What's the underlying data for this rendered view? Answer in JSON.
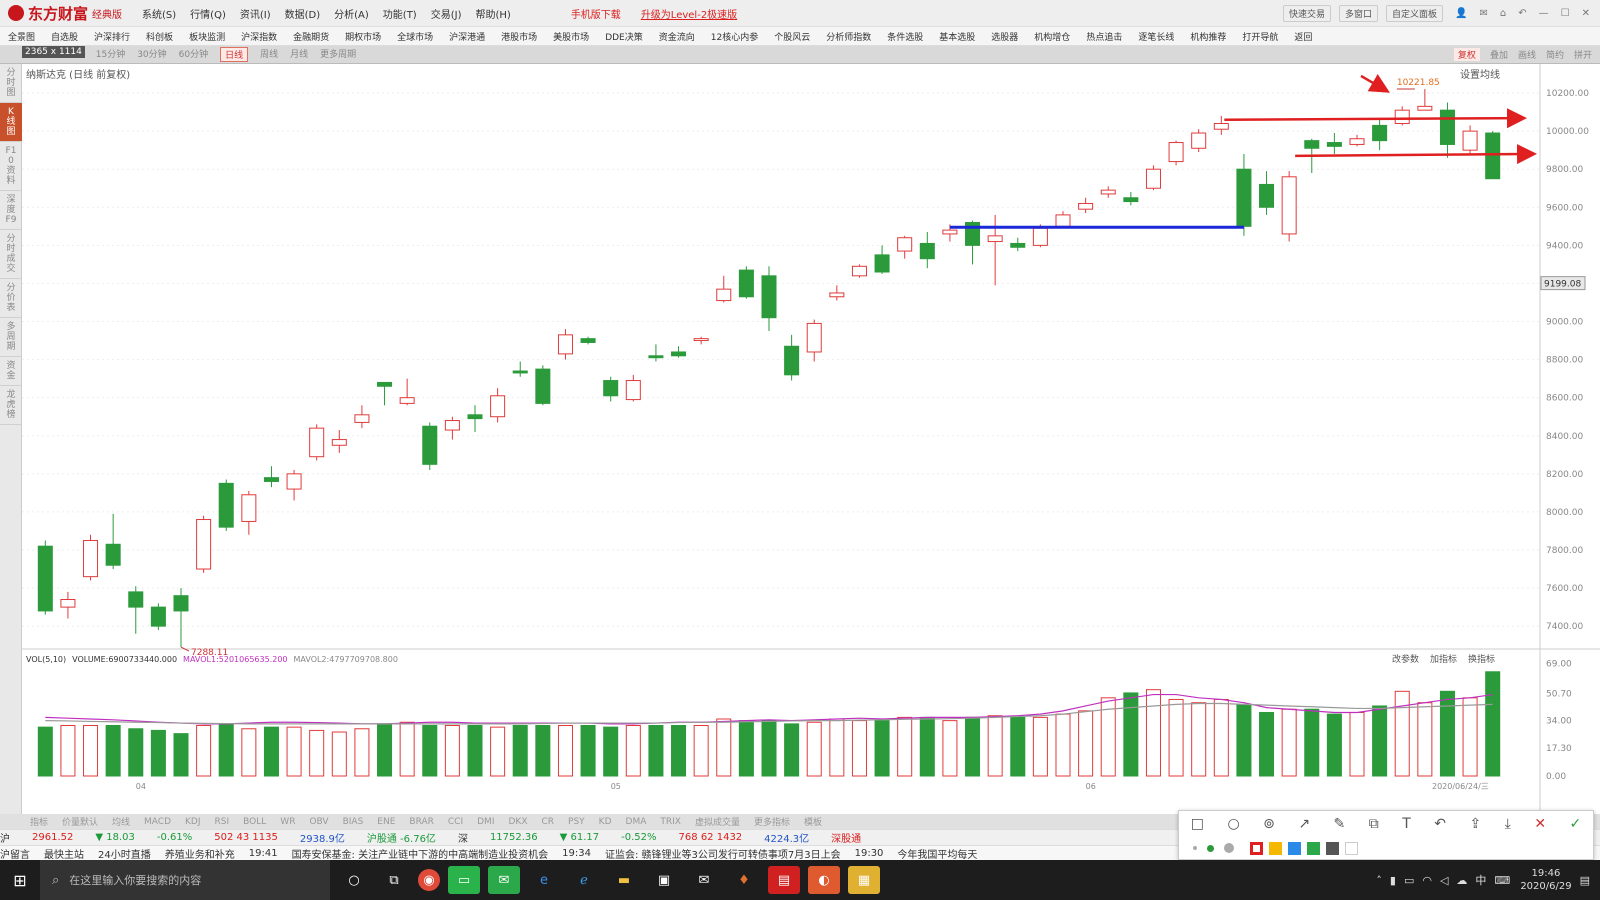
{
  "app": {
    "logo": "东方财富",
    "edition": "经典版"
  },
  "menu": [
    "系统(S)",
    "行情(Q)",
    "资讯(I)",
    "数据(D)",
    "分析(A)",
    "功能(T)",
    "交易(J)",
    "帮助(H)"
  ],
  "promo": {
    "download": "手机版下载",
    "upgrade": "升级为Level-2极速版"
  },
  "title_right": [
    "快速交易",
    "多窗口",
    "自定义面板"
  ],
  "nav": [
    "全景图",
    "自选股",
    "沪深排行",
    "科创板",
    "板块监测",
    "沪深指数",
    "金融期货",
    "期权市场",
    "全球市场",
    "沪深港通",
    "港股市场",
    "美股市场",
    "DDE决策",
    "资金流向",
    "12核心内参",
    "个股风云",
    "分析师指数",
    "条件选股",
    "基本选股",
    "选股器",
    "机构增仓",
    "热点追击",
    "逐笔长线",
    "机构推荐",
    "打开导航",
    "返回"
  ],
  "periods": [
    "分时",
    "5分钟",
    "15分钟",
    "30分钟",
    "60分钟",
    "日线",
    "周线",
    "月线",
    "更多周期"
  ],
  "period_active": "日线",
  "resolution": "2365 x 1114",
  "period_right": [
    "复权",
    "叠加",
    "画线",
    "简约",
    "拼开"
  ],
  "sidebar": [
    "分时图",
    "K线图",
    "F10资料",
    "深度F9",
    "分时成交",
    "分价表",
    "多周期",
    "资金",
    "龙虎榜"
  ],
  "sidebar_active": "K线图",
  "chart": {
    "title": "纳斯达克 (日线 前复权)",
    "ma_setting": "设置均线",
    "high_label": "10221.85",
    "low_label": "7288.11",
    "current_price": "9199.08"
  },
  "volume": {
    "legend": "VOL(5,10)",
    "volume": "VOLUME:6900733440.000",
    "mavol1": "MAVOL1:5201065635.200",
    "mavol2": "MAVOL2:4797709708.800",
    "tools": [
      "改参数",
      "加指标",
      "换指标"
    ],
    "x_labels": [
      "04",
      "05",
      "06"
    ],
    "date_label": "2020/06/24/三"
  },
  "indicator_tabs": [
    "指标",
    "价量默认",
    "均线",
    "MACD",
    "KDJ",
    "RSI",
    "BOLL",
    "WR",
    "OBV",
    "BIAS",
    "ENE",
    "BRAR",
    "CCI",
    "DMI",
    "DKX",
    "CR",
    "PSY",
    "KD",
    "DMA",
    "TRIX",
    "虚拟成交量",
    "更多指标",
    "模板"
  ],
  "ticker": [
    {
      "t": "沪",
      "c": ""
    },
    {
      "t": "2961.52",
      "c": "r"
    },
    {
      "t": "▼ 18.03",
      "c": "g"
    },
    {
      "t": "-0.61%",
      "c": "g"
    },
    {
      "t": "502 43 1135",
      "c": "r"
    },
    {
      "t": "2938.9亿",
      "c": "b"
    },
    {
      "t": "沪股通 -6.76亿",
      "c": "g"
    },
    {
      "t": "深",
      "c": ""
    },
    {
      "t": "11752.36",
      "c": "g"
    },
    {
      "t": "▼ 61.17",
      "c": "g"
    },
    {
      "t": "-0.52%",
      "c": "g"
    },
    {
      "t": "768 62 1432",
      "c": "r"
    },
    {
      "t": "4224.3亿",
      "c": "b"
    },
    {
      "t": "深股通",
      "c": "r"
    }
  ],
  "news": [
    "沪留言",
    "最快主站",
    "24小时直播",
    "养殖业务和补充",
    "19:41",
    "国寿安保基金: 关注产业链中下游的中高端制造业投资机会",
    "19:34",
    "证监会: 赣锋锂业等3公司发行可转债事项7月3日上会",
    "19:30",
    "今年我国平均每天"
  ],
  "taskbar": {
    "search_placeholder": "在这里输入你要搜索的内容",
    "time": "19:46",
    "date": "2020/6/29",
    "ime": "中"
  },
  "chart_data": {
    "type": "candlestick",
    "title": "纳斯达克 (日线 前复权)",
    "ylim": [
      7288,
      10222
    ],
    "yticks": [
      7400,
      7600,
      7800,
      8000,
      8200,
      8400,
      8600,
      8800,
      9000,
      9200,
      9400,
      9600,
      9800,
      10000,
      10200
    ],
    "vol_ticks": [
      "0.00",
      "17.30",
      "34.00",
      "50.70",
      "69.00"
    ],
    "candles": [
      [
        7820,
        7480,
        7850,
        7460
      ],
      [
        7500,
        7540,
        7580,
        7440
      ],
      [
        7660,
        7850,
        7880,
        7640
      ],
      [
        7830,
        7720,
        7990,
        7700
      ],
      [
        7580,
        7500,
        7610,
        7360
      ],
      [
        7500,
        7400,
        7520,
        7380
      ],
      [
        7560,
        7480,
        7600,
        7290
      ],
      [
        7700,
        7960,
        7980,
        7680
      ],
      [
        8150,
        7920,
        8170,
        7900
      ],
      [
        7950,
        8090,
        8110,
        7880
      ],
      [
        8180,
        8160,
        8240,
        8130
      ],
      [
        8120,
        8200,
        8220,
        8060
      ],
      [
        8290,
        8440,
        8460,
        8270
      ],
      [
        8350,
        8380,
        8430,
        8310
      ],
      [
        8470,
        8510,
        8560,
        8440
      ],
      [
        8680,
        8660,
        8680,
        8560
      ],
      [
        8570,
        8600,
        8700,
        8560
      ],
      [
        8450,
        8250,
        8470,
        8220
      ],
      [
        8430,
        8480,
        8500,
        8380
      ],
      [
        8510,
        8490,
        8560,
        8420
      ],
      [
        8500,
        8610,
        8650,
        8470
      ],
      [
        8740,
        8730,
        8790,
        8710
      ],
      [
        8750,
        8570,
        8770,
        8560
      ],
      [
        8830,
        8930,
        8960,
        8800
      ],
      [
        8910,
        8890,
        8920,
        8880
      ],
      [
        8690,
        8610,
        8710,
        8580
      ],
      [
        8590,
        8690,
        8720,
        8580
      ],
      [
        8820,
        8810,
        8880,
        8790
      ],
      [
        8840,
        8820,
        8870,
        8810
      ],
      [
        8900,
        8910,
        8920,
        8880
      ],
      [
        9110,
        9170,
        9240,
        9100
      ],
      [
        9270,
        9130,
        9290,
        9120
      ],
      [
        9240,
        9020,
        9290,
        8950
      ],
      [
        8870,
        8720,
        8930,
        8690
      ],
      [
        8840,
        8990,
        9010,
        8790
      ],
      [
        9130,
        9150,
        9190,
        9110
      ],
      [
        9240,
        9290,
        9300,
        9230
      ],
      [
        9350,
        9260,
        9400,
        9250
      ],
      [
        9370,
        9440,
        9450,
        9330
      ],
      [
        9410,
        9330,
        9470,
        9280
      ],
      [
        9460,
        9480,
        9510,
        9420
      ],
      [
        9520,
        9400,
        9530,
        9300
      ],
      [
        9420,
        9450,
        9560,
        9190
      ],
      [
        9410,
        9390,
        9440,
        9370
      ],
      [
        9400,
        9490,
        9510,
        9390
      ],
      [
        9500,
        9560,
        9580,
        9490
      ],
      [
        9590,
        9620,
        9650,
        9570
      ],
      [
        9670,
        9690,
        9710,
        9650
      ],
      [
        9650,
        9630,
        9680,
        9610
      ],
      [
        9700,
        9800,
        9820,
        9690
      ],
      [
        9840,
        9940,
        9950,
        9820
      ],
      [
        9910,
        9990,
        10010,
        9890
      ],
      [
        10010,
        10040,
        10080,
        9980
      ],
      [
        9800,
        9500,
        9880,
        9450
      ],
      [
        9720,
        9600,
        9790,
        9560
      ],
      [
        9460,
        9760,
        9790,
        9420
      ],
      [
        9950,
        9910,
        9960,
        9780
      ],
      [
        9940,
        9920,
        9990,
        9880
      ],
      [
        9930,
        9960,
        9980,
        9920
      ],
      [
        10030,
        9950,
        10060,
        9900
      ],
      [
        10040,
        10110,
        10130,
        10030
      ],
      [
        10110,
        10130,
        10221,
        10110
      ],
      [
        10110,
        9930,
        10150,
        9860
      ],
      [
        9900,
        10000,
        10030,
        9880
      ],
      [
        9990,
        9750,
        10000,
        9750
      ]
    ],
    "volumes": [
      30,
      31,
      31,
      31,
      29,
      28,
      26,
      31,
      32,
      29,
      30,
      30,
      28,
      27,
      29,
      32,
      33,
      31,
      31,
      31,
      30,
      31,
      31,
      31,
      31,
      30,
      31,
      31,
      31,
      31,
      35,
      34,
      34,
      32,
      33,
      35,
      34,
      34,
      36,
      36,
      34,
      36,
      37,
      36,
      36,
      38,
      40,
      48,
      51,
      53,
      47,
      45,
      47,
      44,
      39,
      41,
      41,
      38,
      39,
      43,
      52,
      45,
      52,
      48,
      64
    ],
    "mavol1": [
      36,
      35.5,
      35,
      34.5,
      33.8,
      33,
      32.5,
      32,
      32,
      32.5,
      33,
      33,
      32.8,
      32.5,
      32,
      32,
      32.5,
      33,
      33,
      32.5,
      32.5,
      32.5,
      32.5,
      32.5,
      32.5,
      32,
      32,
      32.5,
      33,
      33,
      33.5,
      34,
      34.5,
      34,
      34.5,
      35,
      35.5,
      35,
      35.5,
      36,
      36,
      36,
      36.5,
      37,
      38,
      40,
      43,
      46,
      48,
      50,
      50,
      48,
      47,
      45,
      42,
      41,
      40,
      39,
      39,
      41,
      43,
      45,
      47,
      48,
      50
    ],
    "mavol2": [
      34,
      33.8,
      33.5,
      33.3,
      33,
      32.8,
      32.5,
      32.3,
      32.2,
      32,
      32,
      32,
      32,
      32,
      32,
      32,
      32,
      32,
      32,
      32,
      32,
      32,
      32.2,
      32.5,
      32.5,
      32.5,
      32.5,
      32.5,
      32.8,
      33,
      33,
      33.3,
      33.5,
      33.8,
      34,
      34,
      34.3,
      34.5,
      34.8,
      35,
      35.2,
      35.5,
      36,
      36.5,
      37,
      38,
      39.5,
      41,
      42,
      43,
      44,
      44.5,
      44.5,
      44,
      43.5,
      43,
      42.5,
      42,
      41.5,
      41.5,
      42,
      42.5,
      43,
      43.5,
      44
    ]
  }
}
